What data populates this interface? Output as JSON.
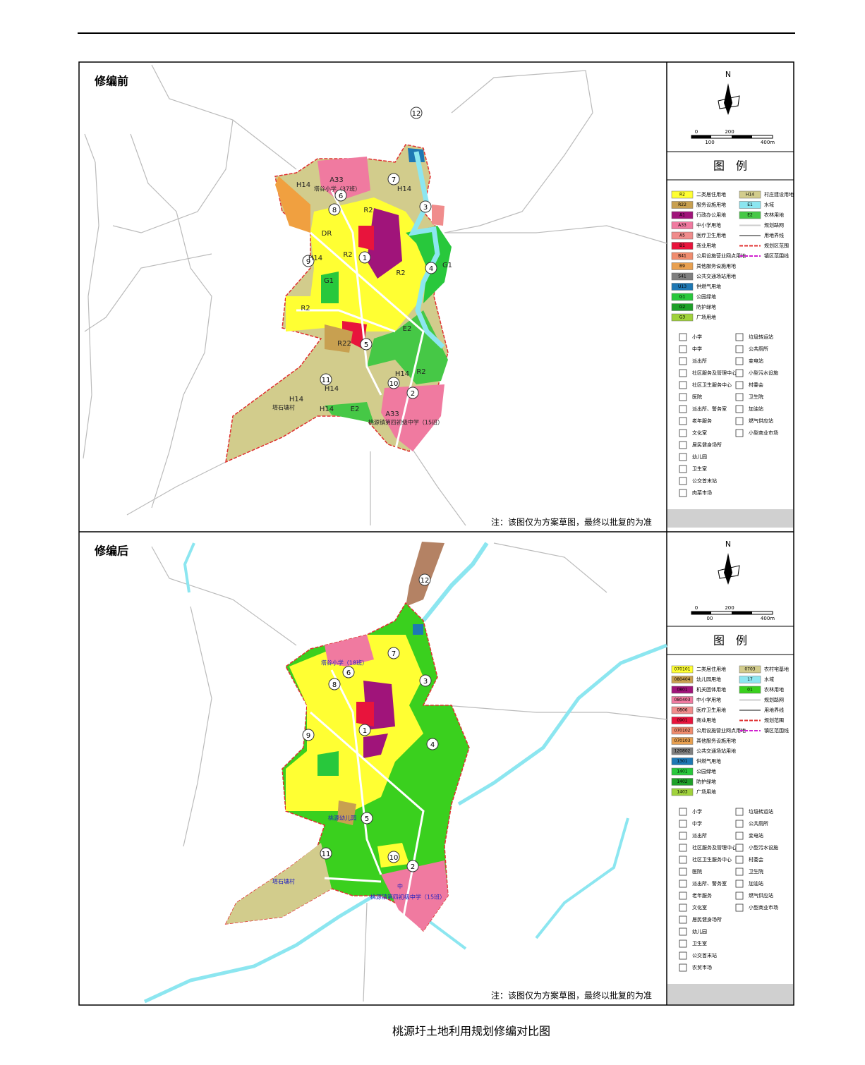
{
  "caption": "桃源圩土地利用规划修编对比图",
  "panels": [
    {
      "title": "修编前",
      "note": "注：该图仅为方案草图，最终以批复的为准",
      "legend": {
        "north": "N",
        "scale": [
          "0",
          "200",
          "100",
          "400m"
        ],
        "title": "图　例",
        "land_use_left": [
          {
            "code": "R2",
            "name": "二类居住用地",
            "color": "#ffff33"
          },
          {
            "code": "R22",
            "name": "服务设施用地",
            "color": "#c8a050"
          },
          {
            "code": "A1",
            "name": "行政办公用地",
            "color": "#a0147a"
          },
          {
            "code": "A33",
            "name": "中小学用地",
            "color": "#f07aa0"
          },
          {
            "code": "A5",
            "name": "医疗卫生用地",
            "color": "#f08c8c"
          },
          {
            "code": "B1",
            "name": "商业用地",
            "color": "#e8143c"
          },
          {
            "code": "B41",
            "name": "公用设施营业网点用地",
            "color": "#f08c6e"
          },
          {
            "code": "B9",
            "name": "其他服务设施用地",
            "color": "#e8a050"
          },
          {
            "code": "S41",
            "name": "公共交通场站用地",
            "color": "#808080"
          },
          {
            "code": "U13",
            "name": "供燃气用地",
            "color": "#1e78b4"
          },
          {
            "code": "G1",
            "name": "公园绿地",
            "color": "#28c83c"
          },
          {
            "code": "G2",
            "name": "防护绿地",
            "color": "#1ea028"
          },
          {
            "code": "G3",
            "name": "广场用地",
            "color": "#a0d23c"
          }
        ],
        "land_use_right": [
          {
            "code": "H14",
            "name": "村庄建设用地",
            "color": "#d2cc8c"
          },
          {
            "code": "E1",
            "name": "水域",
            "color": "#8ce6f0"
          },
          {
            "code": "E2",
            "name": "农林用地",
            "color": "#46c846"
          },
          {
            "name": "规划路网",
            "line": "#cccccc"
          },
          {
            "name": "用地界线",
            "line": "#888888"
          },
          {
            "name": "规划区范围",
            "line": "#e03030"
          },
          {
            "name": "镇区范围线",
            "line": "#d020d0"
          }
        ],
        "facilities_left": [
          "小学",
          "中学",
          "派出所",
          "社区服务及管理中心",
          "社区卫生服务中心",
          "医院",
          "派出所、警务室",
          "老年服务",
          "文化室",
          "居民健身场所",
          "幼儿园",
          "卫生室",
          "公交首末站",
          "肉菜市场"
        ],
        "facilities_right": [
          "垃圾转运站",
          "公共厕所",
          "变电站",
          "小型污水设施",
          "村委会",
          "卫生院",
          "加油站",
          "燃气供应站",
          "小型商业市场"
        ]
      },
      "markers": [
        "1",
        "2",
        "3",
        "4",
        "5",
        "6",
        "7",
        "8",
        "9",
        "10",
        "11",
        "12"
      ],
      "labels": [
        "A33",
        "H14",
        "H14",
        "R2",
        "DR",
        "R2",
        "H14",
        "G1",
        "R2",
        "G1",
        "R2",
        "R22",
        "E2",
        "H14",
        "R2",
        "H14",
        "H14",
        "E2",
        "A33",
        "H14",
        "塔谷小学（37班）",
        "桃源镇第四初级中学（15班）",
        "塔石塘村"
      ]
    },
    {
      "title": "修编后",
      "note": "注：该图仅为方案草图，最终以批复的为准",
      "legend": {
        "north": "N",
        "scale": [
          "0",
          "200",
          "00",
          "400m"
        ],
        "title": "图　例",
        "land_use_left": [
          {
            "code": "070101",
            "name": "二类居住用地",
            "color": "#ffff33"
          },
          {
            "code": "080404",
            "name": "幼儿园用地",
            "color": "#c8a050"
          },
          {
            "code": "0801",
            "name": "机关团体用地",
            "color": "#a0147a"
          },
          {
            "code": "080403",
            "name": "中小学用地",
            "color": "#f07aa0"
          },
          {
            "code": "0806",
            "name": "医疗卫生用地",
            "color": "#f08c8c"
          },
          {
            "code": "0901",
            "name": "商业用地",
            "color": "#e8143c"
          },
          {
            "code": "070102",
            "name": "公用设施营业网点用地",
            "color": "#f08c6e"
          },
          {
            "code": "070103",
            "name": "其他服务设施用地",
            "color": "#e8a050"
          },
          {
            "code": "120802",
            "name": "公共交通场站用地",
            "color": "#808080"
          },
          {
            "code": "1301",
            "name": "供燃气用地",
            "color": "#1e78b4"
          },
          {
            "code": "1401",
            "name": "公园绿地",
            "color": "#28c83c"
          },
          {
            "code": "1402",
            "name": "防护绿地",
            "color": "#1ea028"
          },
          {
            "code": "1403",
            "name": "广场用地",
            "color": "#a0d23c"
          }
        ],
        "land_use_right": [
          {
            "code": "0703",
            "name": "农村宅基地",
            "color": "#d2cc8c"
          },
          {
            "code": "17",
            "name": "水域",
            "color": "#8ce6f0"
          },
          {
            "code": "01",
            "name": "农林用地",
            "color": "#3ad01e"
          },
          {
            "name": "规划路网",
            "line": "#cccccc"
          },
          {
            "name": "用地界线",
            "line": "#888888"
          },
          {
            "name": "规划范围",
            "line": "#e03030"
          },
          {
            "name": "镇区范围线",
            "line": "#d020d0"
          }
        ],
        "facilities_left": [
          "小学",
          "中学",
          "派出所",
          "社区服务及管理中心",
          "社区卫生服务中心",
          "医院",
          "派出所、警务室",
          "老年服务",
          "文化室",
          "居民健身场所",
          "幼儿园",
          "卫生室",
          "公交首末站",
          "农贸市场"
        ],
        "facilities_right": [
          "垃圾转运站",
          "公共厕所",
          "变电站",
          "小型污水设施",
          "村委会",
          "卫生院",
          "加油站",
          "燃气供应站",
          "小型商业市场"
        ]
      },
      "markers": [
        "1",
        "2",
        "3",
        "4",
        "5",
        "6",
        "7",
        "8",
        "9",
        "10",
        "11",
        "12"
      ],
      "labels": [
        "塔谷小学（18班）",
        "桃源镇第四初级中学（15班）",
        "塔石塘村",
        "桃源幼儿园",
        "中"
      ]
    }
  ]
}
